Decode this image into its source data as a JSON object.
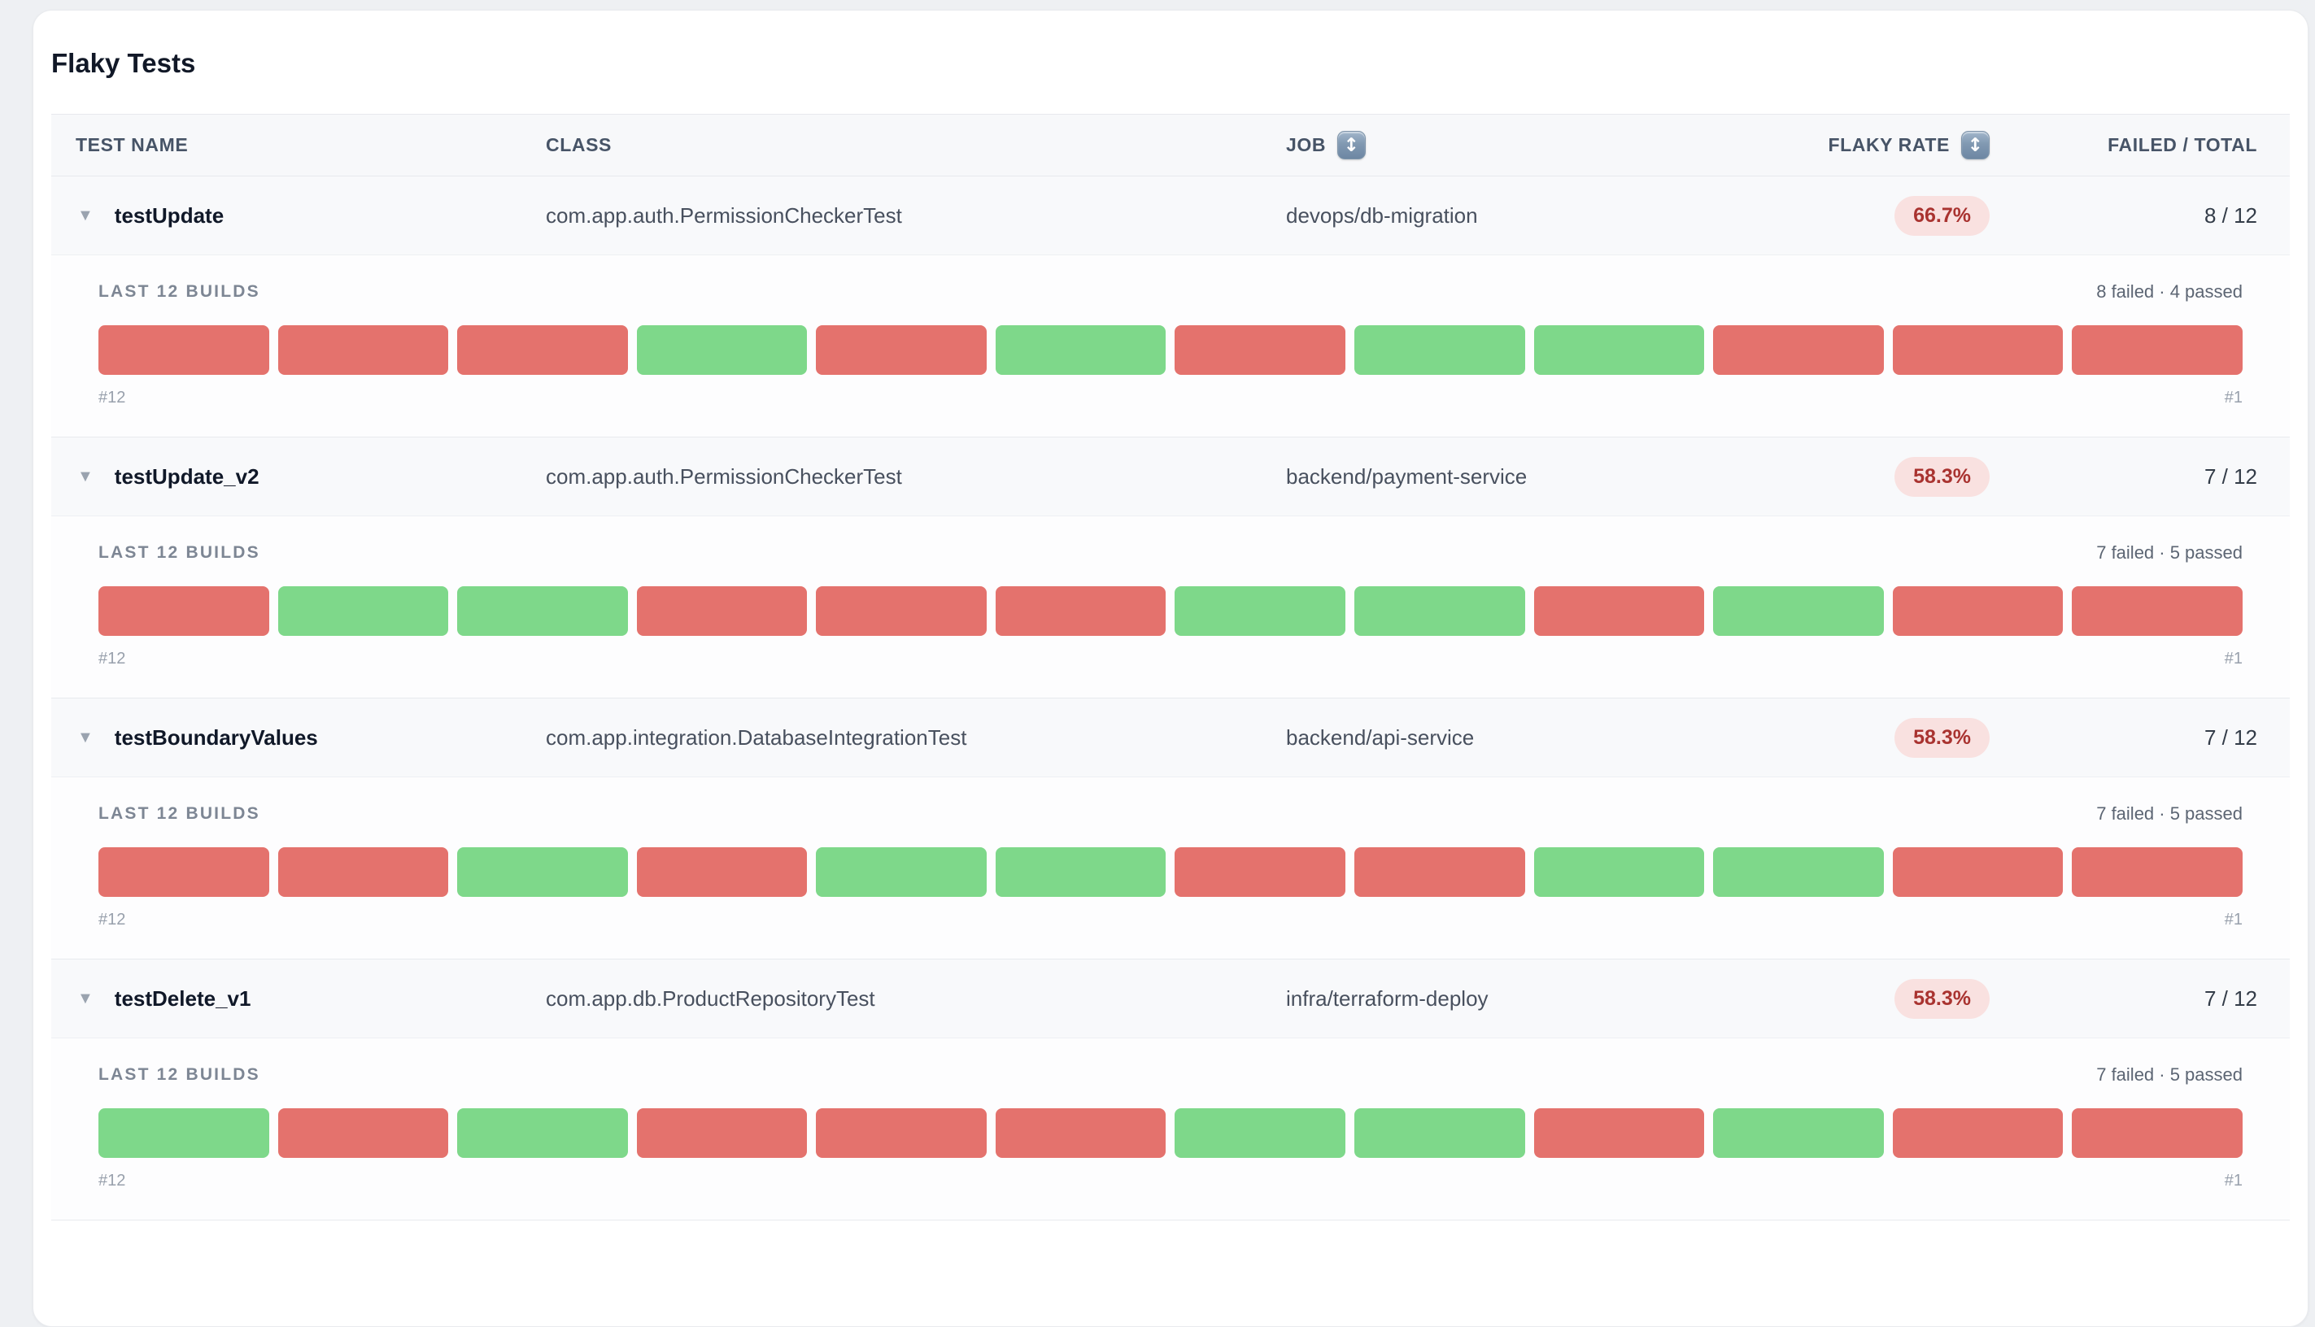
{
  "page": {
    "title": "Flaky Tests"
  },
  "icons": {
    "sort": "↕",
    "expand": "▼"
  },
  "colors": {
    "failed_bar": "#e4726d",
    "passed_bar": "#7ed88a",
    "badge_bg": "#f9e1e0",
    "badge_text": "#a93330"
  },
  "table": {
    "columns": [
      {
        "label": "TEST NAME",
        "sortable": false
      },
      {
        "label": "CLASS",
        "sortable": false
      },
      {
        "label": "JOB",
        "sortable": true
      },
      {
        "label": "FLAKY RATE",
        "sortable": true
      },
      {
        "label": "FAILED / TOTAL",
        "sortable": false
      }
    ],
    "history_label": "LAST 12 BUILDS",
    "rows": [
      {
        "test_name": "testUpdate",
        "class": "com.app.auth.PermissionCheckerTest",
        "job": "devops/db-migration",
        "flaky_rate": "66.7%",
        "failed_total": "8 / 12",
        "summary": "8 failed · 4 passed",
        "first_build_label": "#12",
        "last_build_label": "#1",
        "builds": [
          "failed",
          "failed",
          "failed",
          "passed",
          "failed",
          "passed",
          "failed",
          "passed",
          "passed",
          "failed",
          "failed",
          "failed"
        ]
      },
      {
        "test_name": "testUpdate_v2",
        "class": "com.app.auth.PermissionCheckerTest",
        "job": "backend/payment-service",
        "flaky_rate": "58.3%",
        "failed_total": "7 / 12",
        "summary": "7 failed · 5 passed",
        "first_build_label": "#12",
        "last_build_label": "#1",
        "builds": [
          "failed",
          "passed",
          "passed",
          "failed",
          "failed",
          "failed",
          "passed",
          "passed",
          "failed",
          "passed",
          "failed",
          "failed"
        ]
      },
      {
        "test_name": "testBoundaryValues",
        "class": "com.app.integration.DatabaseIntegrationTest",
        "job": "backend/api-service",
        "flaky_rate": "58.3%",
        "failed_total": "7 / 12",
        "summary": "7 failed · 5 passed",
        "first_build_label": "#12",
        "last_build_label": "#1",
        "builds": [
          "failed",
          "failed",
          "passed",
          "failed",
          "passed",
          "passed",
          "failed",
          "failed",
          "passed",
          "passed",
          "failed",
          "failed"
        ]
      },
      {
        "test_name": "testDelete_v1",
        "class": "com.app.db.ProductRepositoryTest",
        "job": "infra/terraform-deploy",
        "flaky_rate": "58.3%",
        "failed_total": "7 / 12",
        "summary": "7 failed · 5 passed",
        "first_build_label": "#12",
        "last_build_label": "#1",
        "builds": [
          "passed",
          "failed",
          "passed",
          "failed",
          "failed",
          "failed",
          "passed",
          "passed",
          "failed",
          "passed",
          "failed",
          "failed"
        ]
      }
    ]
  }
}
